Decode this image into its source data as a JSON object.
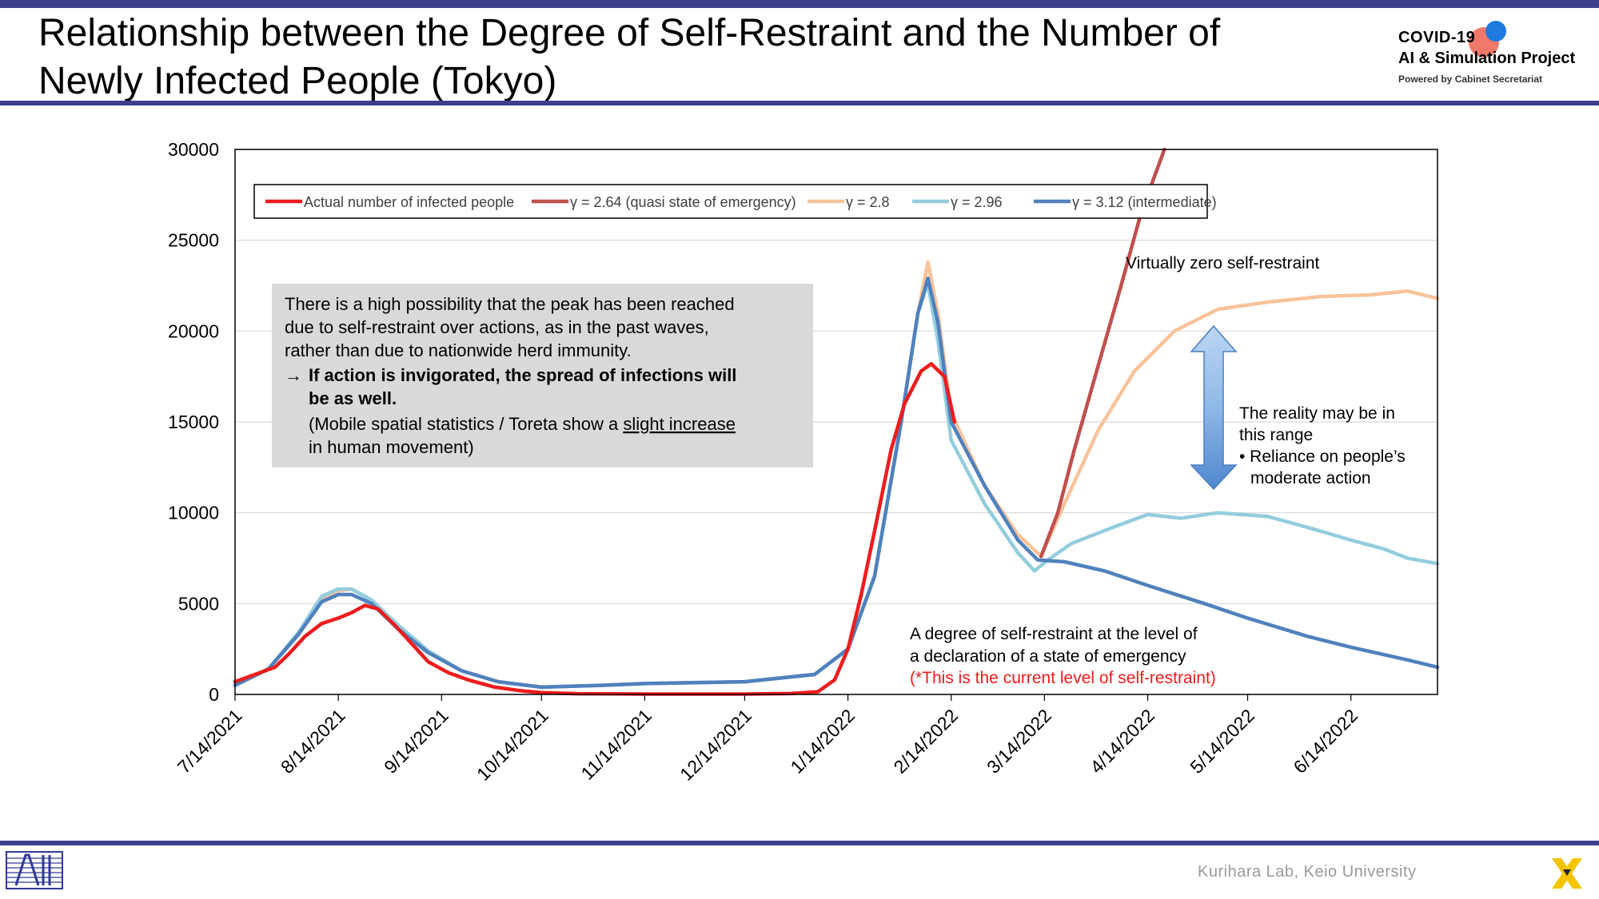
{
  "header": {
    "title_line1": "Relationship between the Degree of Self-Restraint and the Number of",
    "title_line2": "Newly Infected People (Tokyo)"
  },
  "logo": {
    "line1": "COVID-19",
    "line2": "AI & Simulation Project",
    "line3": "Powered by Cabinet Secretariat"
  },
  "footer": {
    "credit": "Kurihara Lab, Keio University"
  },
  "chart_data": {
    "type": "line",
    "ylim": [
      0,
      30000
    ],
    "yticks": [
      "0",
      "5000",
      "10000",
      "15000",
      "20000",
      "25000",
      "30000"
    ],
    "xticks": [
      "7/14/2021",
      "8/14/2021",
      "9/14/2021",
      "10/14/2021",
      "11/14/2021",
      "12/14/2021",
      "1/14/2022",
      "2/14/2022",
      "3/14/2022",
      "4/14/2022",
      "5/14/2022",
      "6/14/2022"
    ],
    "xlim": [
      "2021-07-14",
      "2022-07-10"
    ],
    "grid": true,
    "legend_position": "top",
    "series": [
      {
        "name": "Actual number of infected people",
        "color": "#ee1c1c",
        "points": [
          [
            "2021-07-14",
            700
          ],
          [
            "2021-07-20",
            1100
          ],
          [
            "2021-07-26",
            1500
          ],
          [
            "2021-07-30",
            2200
          ],
          [
            "2021-08-04",
            3200
          ],
          [
            "2021-08-09",
            3900
          ],
          [
            "2021-08-14",
            4200
          ],
          [
            "2021-08-18",
            4500
          ],
          [
            "2021-08-22",
            4900
          ],
          [
            "2021-08-26",
            4700
          ],
          [
            "2021-08-31",
            3800
          ],
          [
            "2021-09-05",
            2800
          ],
          [
            "2021-09-10",
            1800
          ],
          [
            "2021-09-16",
            1200
          ],
          [
            "2021-09-22",
            800
          ],
          [
            "2021-09-30",
            400
          ],
          [
            "2021-10-08",
            200
          ],
          [
            "2021-10-14",
            100
          ],
          [
            "2021-10-25",
            40
          ],
          [
            "2021-11-14",
            20
          ],
          [
            "2021-12-14",
            20
          ],
          [
            "2021-12-28",
            50
          ],
          [
            "2022-01-05",
            150
          ],
          [
            "2022-01-10",
            800
          ],
          [
            "2022-01-14",
            2500
          ],
          [
            "2022-01-18",
            5500
          ],
          [
            "2022-01-22",
            9000
          ],
          [
            "2022-01-27",
            13500
          ],
          [
            "2022-01-31",
            16000
          ],
          [
            "2022-02-05",
            17800
          ],
          [
            "2022-02-08",
            18200
          ],
          [
            "2022-02-12",
            17500
          ],
          [
            "2022-02-15",
            15000
          ]
        ]
      },
      {
        "name": "γ = 2.64 (quasi state of emergency)",
        "color": "#c0504d",
        "points": [
          [
            "2022-03-13",
            7600
          ],
          [
            "2022-03-18",
            10000
          ],
          [
            "2022-03-23",
            13500
          ],
          [
            "2022-03-30",
            18000
          ],
          [
            "2022-04-06",
            22500
          ],
          [
            "2022-04-12",
            26500
          ],
          [
            "2022-04-19",
            30000
          ]
        ]
      },
      {
        "name": "γ = 2.8",
        "color": "#f8c39b",
        "points": [
          [
            "2021-07-14",
            500
          ],
          [
            "2021-07-24",
            1400
          ],
          [
            "2021-08-02",
            3300
          ],
          [
            "2021-08-09",
            5200
          ],
          [
            "2021-08-14",
            5700
          ],
          [
            "2021-08-18",
            5800
          ],
          [
            "2021-08-24",
            5200
          ],
          [
            "2021-09-01",
            3800
          ],
          [
            "2021-09-10",
            2400
          ],
          [
            "2021-09-20",
            1300
          ],
          [
            "2021-10-01",
            700
          ],
          [
            "2021-10-14",
            400
          ],
          [
            "2021-11-01",
            500
          ],
          [
            "2021-11-14",
            600
          ],
          [
            "2021-12-14",
            700
          ],
          [
            "2022-01-04",
            1100
          ],
          [
            "2022-01-14",
            2500
          ],
          [
            "2022-01-22",
            6500
          ],
          [
            "2022-01-30",
            15000
          ],
          [
            "2022-02-04",
            21000
          ],
          [
            "2022-02-07",
            23800
          ],
          [
            "2022-02-10",
            21000
          ],
          [
            "2022-02-14",
            15500
          ],
          [
            "2022-02-24",
            11500
          ],
          [
            "2022-03-06",
            8800
          ],
          [
            "2022-03-13",
            7600
          ],
          [
            "2022-03-20",
            10500
          ],
          [
            "2022-03-30",
            14500
          ],
          [
            "2022-04-10",
            17800
          ],
          [
            "2022-04-22",
            20000
          ],
          [
            "2022-05-05",
            21200
          ],
          [
            "2022-05-20",
            21600
          ],
          [
            "2022-06-05",
            21900
          ],
          [
            "2022-06-20",
            22000
          ],
          [
            "2022-07-01",
            22200
          ],
          [
            "2022-07-10",
            21800
          ]
        ]
      },
      {
        "name": "γ = 2.96",
        "color": "#93cddd",
        "points": [
          [
            "2021-07-14",
            500
          ],
          [
            "2021-07-24",
            1400
          ],
          [
            "2021-08-02",
            3400
          ],
          [
            "2021-08-09",
            5400
          ],
          [
            "2021-08-14",
            5800
          ],
          [
            "2021-08-18",
            5800
          ],
          [
            "2021-08-24",
            5200
          ],
          [
            "2021-09-01",
            3800
          ],
          [
            "2021-09-10",
            2400
          ],
          [
            "2021-09-20",
            1300
          ],
          [
            "2021-10-01",
            700
          ],
          [
            "2021-10-14",
            400
          ],
          [
            "2021-11-01",
            500
          ],
          [
            "2021-11-14",
            600
          ],
          [
            "2021-12-14",
            700
          ],
          [
            "2022-01-04",
            1100
          ],
          [
            "2022-01-14",
            2500
          ],
          [
            "2022-01-22",
            6500
          ],
          [
            "2022-01-30",
            15000
          ],
          [
            "2022-02-04",
            21000
          ],
          [
            "2022-02-07",
            22600
          ],
          [
            "2022-02-10",
            19500
          ],
          [
            "2022-02-14",
            14000
          ],
          [
            "2022-02-24",
            10500
          ],
          [
            "2022-03-06",
            7800
          ],
          [
            "2022-03-11",
            6800
          ],
          [
            "2022-03-15",
            7400
          ],
          [
            "2022-03-22",
            8300
          ],
          [
            "2022-04-05",
            9300
          ],
          [
            "2022-04-14",
            9900
          ],
          [
            "2022-04-24",
            9700
          ],
          [
            "2022-05-05",
            10000
          ],
          [
            "2022-05-20",
            9800
          ],
          [
            "2022-06-01",
            9200
          ],
          [
            "2022-06-14",
            8500
          ],
          [
            "2022-06-24",
            8000
          ],
          [
            "2022-07-01",
            7500
          ],
          [
            "2022-07-10",
            7200
          ]
        ]
      },
      {
        "name": "γ = 3.12 (intermediate)",
        "color": "#4f81bd",
        "points": [
          [
            "2021-07-14",
            500
          ],
          [
            "2021-07-24",
            1400
          ],
          [
            "2021-08-02",
            3300
          ],
          [
            "2021-08-09",
            5100
          ],
          [
            "2021-08-14",
            5500
          ],
          [
            "2021-08-18",
            5500
          ],
          [
            "2021-08-24",
            5000
          ],
          [
            "2021-09-01",
            3600
          ],
          [
            "2021-09-10",
            2300
          ],
          [
            "2021-09-20",
            1300
          ],
          [
            "2021-10-01",
            700
          ],
          [
            "2021-10-14",
            400
          ],
          [
            "2021-11-01",
            500
          ],
          [
            "2021-11-14",
            600
          ],
          [
            "2021-12-14",
            700
          ],
          [
            "2022-01-04",
            1100
          ],
          [
            "2022-01-14",
            2500
          ],
          [
            "2022-01-22",
            6500
          ],
          [
            "2022-01-30",
            15000
          ],
          [
            "2022-02-04",
            21000
          ],
          [
            "2022-02-07",
            22900
          ],
          [
            "2022-02-10",
            20500
          ],
          [
            "2022-02-14",
            15000
          ],
          [
            "2022-02-24",
            11500
          ],
          [
            "2022-03-06",
            8500
          ],
          [
            "2022-03-12",
            7400
          ],
          [
            "2022-03-20",
            7300
          ],
          [
            "2022-04-01",
            6800
          ],
          [
            "2022-04-14",
            6000
          ],
          [
            "2022-05-01",
            5000
          ],
          [
            "2022-05-14",
            4200
          ],
          [
            "2022-06-01",
            3200
          ],
          [
            "2022-06-14",
            2600
          ],
          [
            "2022-07-01",
            1900
          ],
          [
            "2022-07-10",
            1500
          ]
        ]
      }
    ],
    "annotations": {
      "info_box": {
        "line1": "There is a high possibility that the peak has been reached",
        "line2": "due to self-restraint over actions, as in the past waves,",
        "line3": "rather than due to nationwide herd immunity.",
        "arrow": "→",
        "bold1": "If action is invigorated, the spread of infections will",
        "bold2": "be as well.",
        "note1_prefix": "(Mobile spatial statistics / Toreta show a ",
        "note1_underline": "slight increase",
        "note2": "in human movement)"
      },
      "zero_restraint": "Virtually zero self-restraint",
      "range_line1": "The reality may be in",
      "range_line2": "this range",
      "range_line3": "• Reliance on people’s",
      "range_line4": "moderate action",
      "emergency_line1": "A degree of self-restraint at the level of",
      "emergency_line2": "a declaration of a state of emergency",
      "emergency_line3": "(*This is the current level of self-restraint)"
    }
  }
}
